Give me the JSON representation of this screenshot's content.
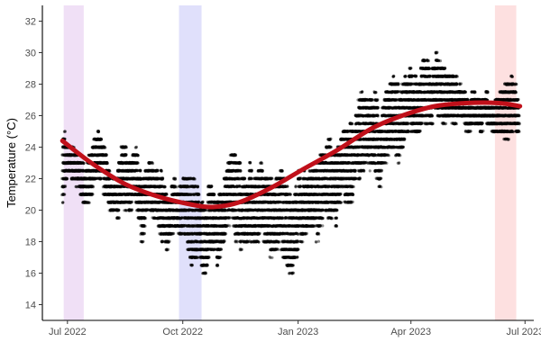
{
  "chart_data": {
    "type": "scatter",
    "title": "",
    "xlabel": "",
    "ylabel": "Temperature (°C)",
    "xlim": [
      "2022-06-11",
      "2023-07-08"
    ],
    "ylim": [
      13.0,
      33.0
    ],
    "x_ticks": [
      {
        "date": "2022-07-01",
        "label": "Jul 2022"
      },
      {
        "date": "2022-10-01",
        "label": "Oct 2022"
      },
      {
        "date": "2023-01-01",
        "label": "Jan 2023"
      },
      {
        "date": "2023-04-01",
        "label": "Apr 2023"
      },
      {
        "date": "2023-07-01",
        "label": "Jul 2023"
      }
    ],
    "y_ticks": [
      14,
      16,
      18,
      20,
      22,
      24,
      26,
      28,
      30,
      32
    ],
    "grid": false,
    "legend": "none",
    "shaded_regions": [
      {
        "start": "2022-06-28",
        "end": "2022-07-14",
        "color": "#f0e0f6"
      },
      {
        "start": "2022-09-28",
        "end": "2022-10-16",
        "color": "#e0e0fb"
      },
      {
        "start": "2023-06-07",
        "end": "2023-06-24",
        "color": "#fde0e0"
      }
    ],
    "trend_line": {
      "color": "#c0101a",
      "x": [
        "2022-06-27",
        "2022-07-20",
        "2022-08-15",
        "2022-09-10",
        "2022-10-05",
        "2022-10-25",
        "2022-11-15",
        "2022-12-10",
        "2023-01-05",
        "2023-02-01",
        "2023-03-01",
        "2023-03-25",
        "2023-04-20",
        "2023-05-15",
        "2023-06-10",
        "2023-06-27"
      ],
      "y": [
        24.4,
        23.0,
        21.7,
        20.9,
        20.4,
        20.2,
        20.5,
        21.4,
        22.6,
        23.8,
        25.2,
        26.0,
        26.6,
        26.8,
        26.8,
        26.6
      ]
    },
    "series": [
      {
        "color": "#000000",
        "points_per_day": 48,
        "x": [
          "2022-06-27",
          "2022-07-01",
          "2022-07-05",
          "2022-07-10",
          "2022-07-15",
          "2022-07-20",
          "2022-07-25",
          "2022-07-30",
          "2022-08-04",
          "2022-08-09",
          "2022-08-14",
          "2022-08-19",
          "2022-08-24",
          "2022-08-29",
          "2022-09-03",
          "2022-09-08",
          "2022-09-13",
          "2022-09-18",
          "2022-09-23",
          "2022-09-28",
          "2022-10-03",
          "2022-10-08",
          "2022-10-13",
          "2022-10-18",
          "2022-10-23",
          "2022-10-28",
          "2022-11-02",
          "2022-11-07",
          "2022-11-12",
          "2022-11-17",
          "2022-11-22",
          "2022-11-27",
          "2022-12-02",
          "2022-12-07",
          "2022-12-12",
          "2022-12-17",
          "2022-12-22",
          "2022-12-27",
          "2023-01-01",
          "2023-01-06",
          "2023-01-11",
          "2023-01-16",
          "2023-01-21",
          "2023-01-26",
          "2023-01-31",
          "2023-02-05",
          "2023-02-10",
          "2023-02-15",
          "2023-02-20",
          "2023-02-25",
          "2023-03-02",
          "2023-03-07",
          "2023-03-12",
          "2023-03-17",
          "2023-03-22",
          "2023-03-27",
          "2023-04-01",
          "2023-04-06",
          "2023-04-11",
          "2023-04-16",
          "2023-04-21",
          "2023-04-26",
          "2023-05-01",
          "2023-05-06",
          "2023-05-11",
          "2023-05-16",
          "2023-05-21",
          "2023-05-26",
          "2023-05-31",
          "2023-06-05",
          "2023-06-10",
          "2023-06-15",
          "2023-06-20",
          "2023-06-25"
        ],
        "ymin": [
          20.5,
          22.5,
          22.0,
          21.5,
          20.0,
          21.0,
          22.5,
          21.0,
          20.0,
          19.0,
          20.5,
          19.5,
          21.0,
          18.0,
          20.5,
          19.5,
          18.0,
          17.5,
          18.5,
          18.5,
          18.0,
          16.5,
          17.0,
          15.8,
          17.5,
          16.5,
          18.0,
          19.5,
          18.0,
          17.5,
          18.0,
          17.0,
          18.5,
          17.5,
          17.0,
          18.0,
          16.5,
          16.0,
          17.5,
          18.5,
          19.0,
          18.0,
          20.0,
          19.5,
          19.0,
          21.0,
          20.0,
          21.5,
          22.0,
          23.0,
          22.5,
          21.5,
          23.5,
          24.0,
          23.0,
          24.5,
          25.0,
          24.5,
          25.5,
          25.0,
          26.0,
          25.5,
          26.0,
          25.5,
          26.0,
          25.0,
          25.5,
          25.0,
          25.5,
          25.0,
          25.0,
          24.5,
          25.0,
          24.5
        ],
        "ymax": [
          25.0,
          24.5,
          24.0,
          23.5,
          22.5,
          24.0,
          25.0,
          24.0,
          22.0,
          22.5,
          24.5,
          23.0,
          24.0,
          22.0,
          23.5,
          22.5,
          22.5,
          21.0,
          22.0,
          21.5,
          22.5,
          22.0,
          21.5,
          20.5,
          22.0,
          20.5,
          22.0,
          23.5,
          24.0,
          22.5,
          23.0,
          22.5,
          23.5,
          22.5,
          21.5,
          23.0,
          21.5,
          20.5,
          22.5,
          22.5,
          23.0,
          23.0,
          24.0,
          24.5,
          23.5,
          25.0,
          25.5,
          26.0,
          27.5,
          27.0,
          28.0,
          26.0,
          27.5,
          28.5,
          28.0,
          28.5,
          29.0,
          28.5,
          30.0,
          29.0,
          30.0,
          29.0,
          29.0,
          28.5,
          28.0,
          27.0,
          27.5,
          27.0,
          27.5,
          26.5,
          27.5,
          28.0,
          28.5,
          27.5
        ]
      }
    ]
  }
}
